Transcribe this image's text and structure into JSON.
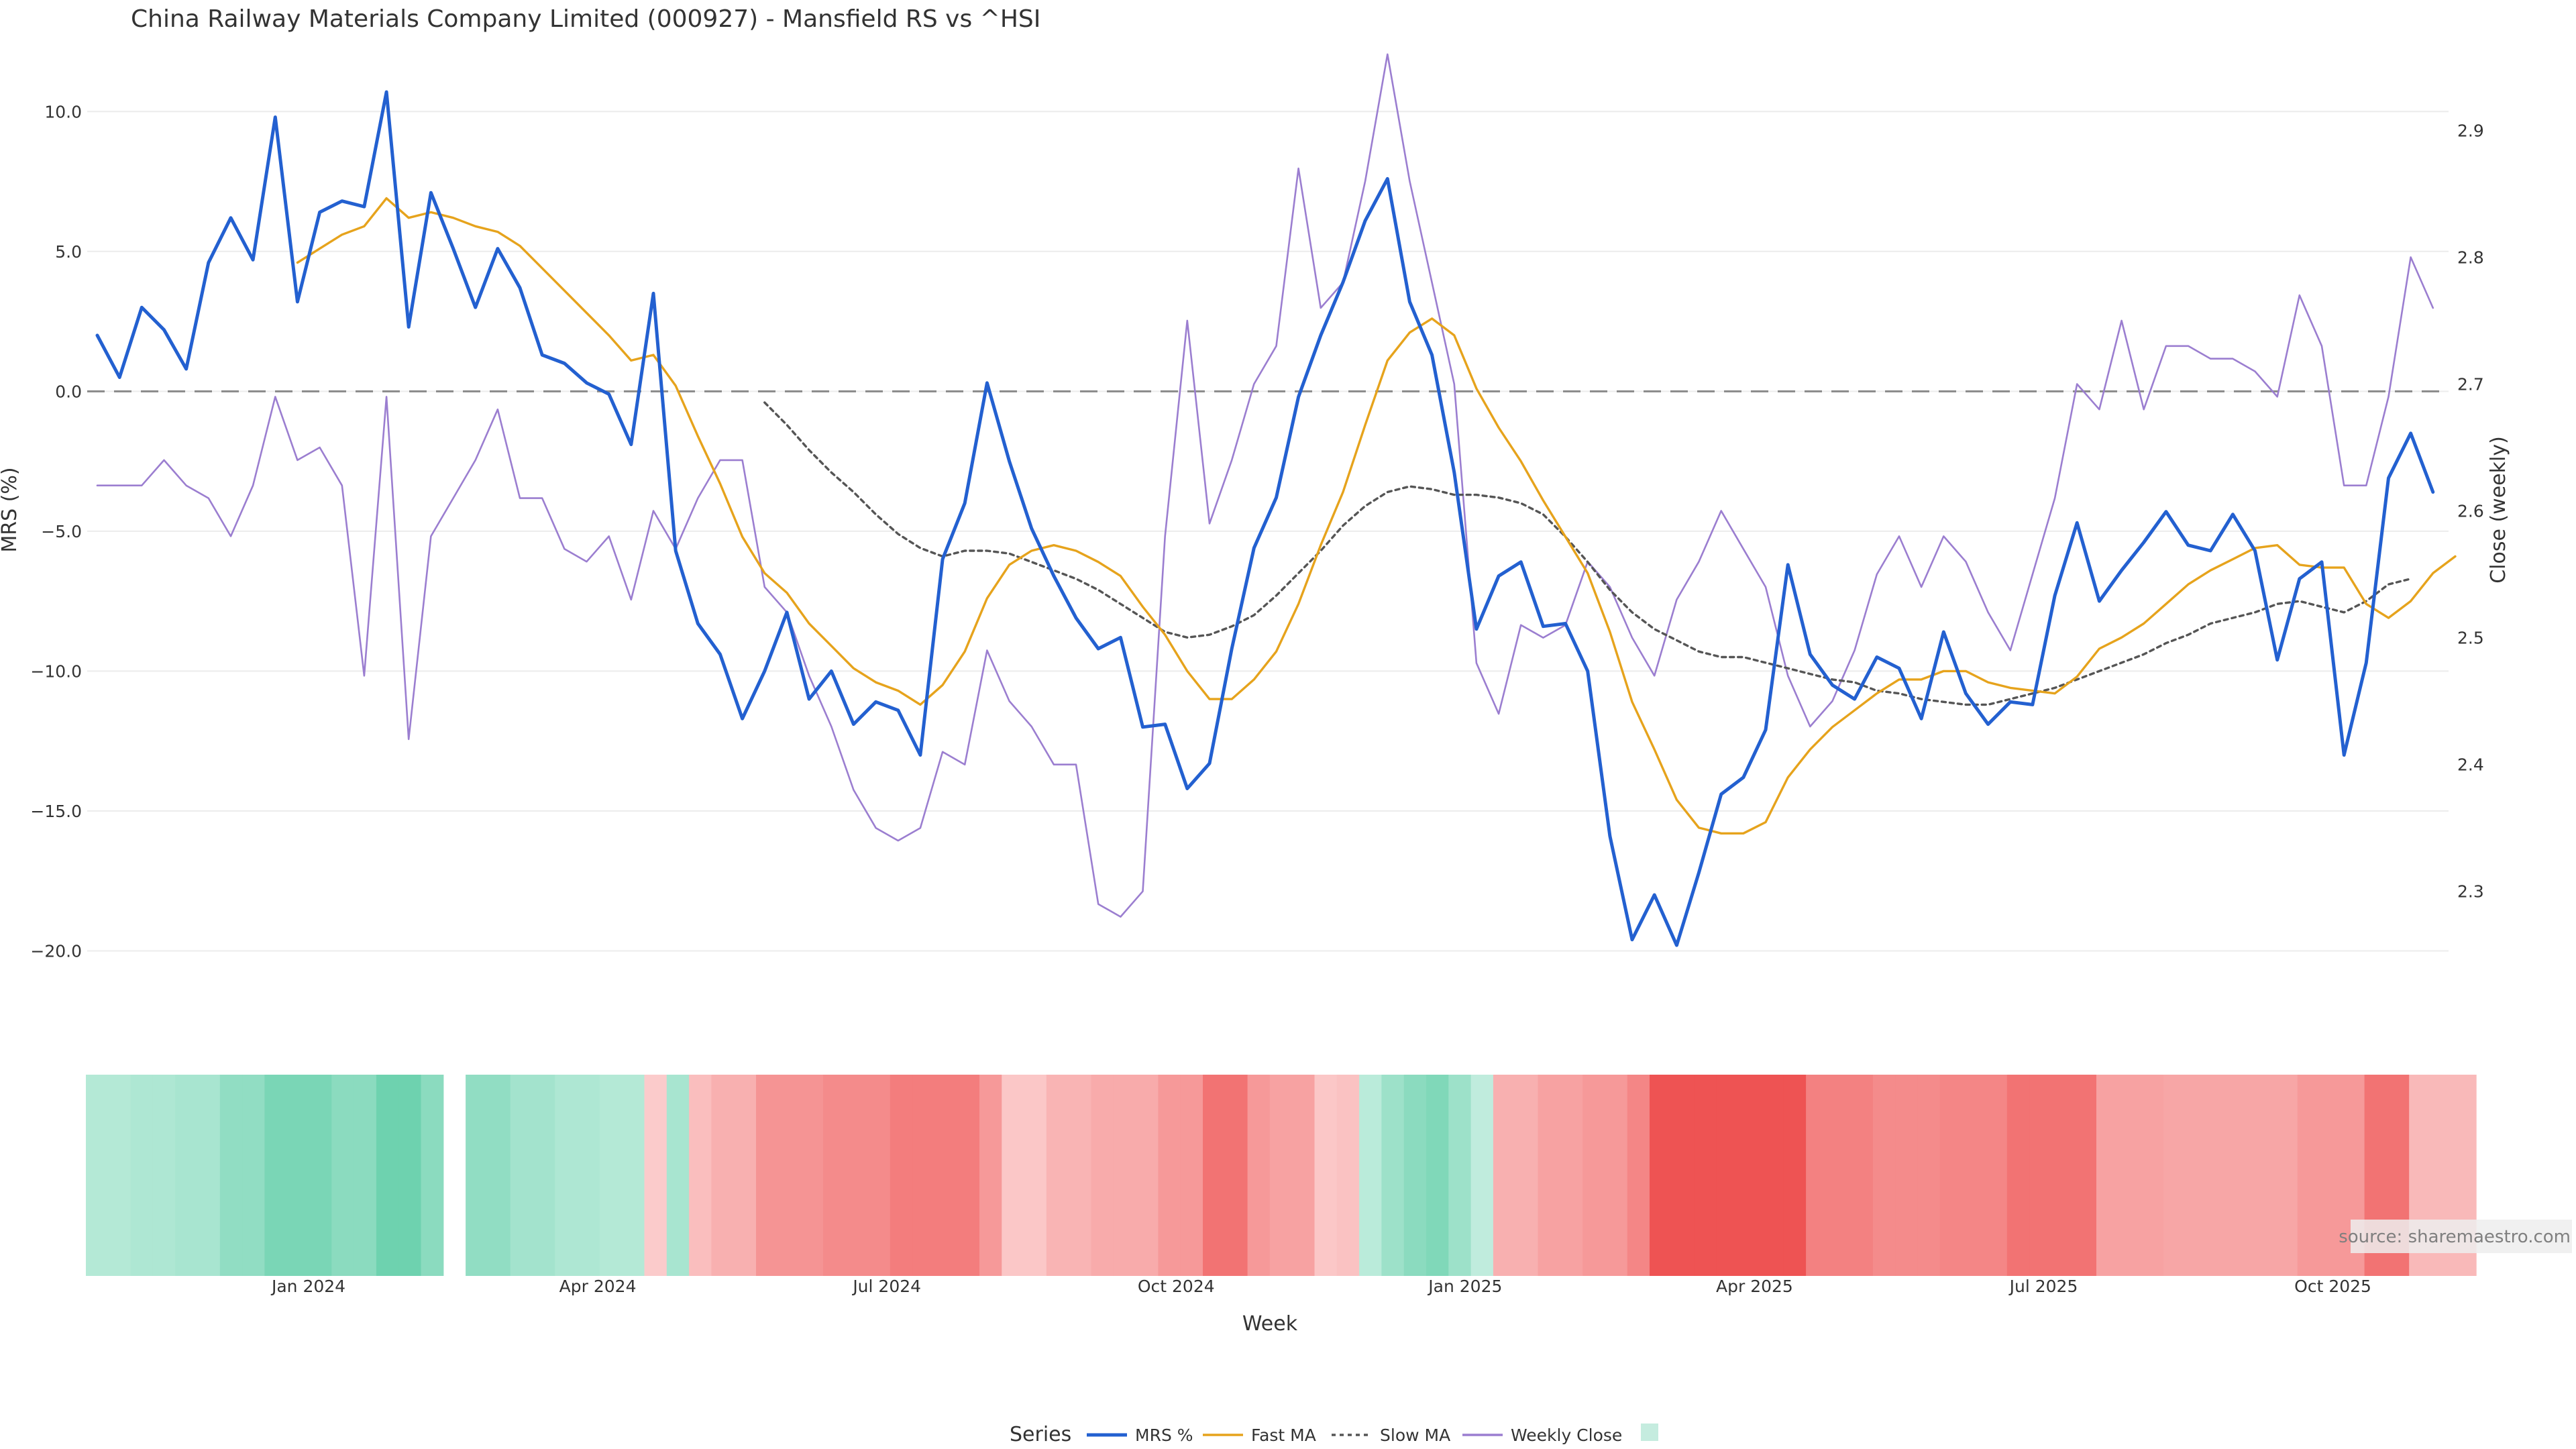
{
  "chart_data": {
    "type": "line",
    "title": "China Railway Materials Company Limited (000927) - Mansfield RS vs ^HSI",
    "xlabel": "Week",
    "ylabel_left": "MRS (%)",
    "ylabel_right": "Close (weekly)",
    "ylim_left": [
      -21.5,
      12.5
    ],
    "ylim_right": [
      2.22,
      2.97
    ],
    "yticks_left": [
      10.0,
      5.0,
      0.0,
      -5.0,
      -10.0,
      -15.0,
      -20.0
    ],
    "yticks_left_labels": [
      "10.0",
      "5.0",
      "0.0",
      "−5.0",
      "−10.0",
      "−15.0",
      "−20.0"
    ],
    "yticks_right": [
      2.9,
      2.8,
      2.7,
      2.6,
      2.5,
      2.4,
      2.3
    ],
    "yticks_right_labels": [
      "2.9",
      "2.8",
      "2.7",
      "2.6",
      "2.5",
      "2.4",
      "2.3"
    ],
    "x_ticks": [
      {
        "label": "Jan 2024",
        "index": 9.5
      },
      {
        "label": "Apr 2024",
        "index": 22.5
      },
      {
        "label": "Jul 2024",
        "index": 35.5
      },
      {
        "label": "Oct 2024",
        "index": 48.5
      },
      {
        "label": "Jan 2025",
        "index": 61.5
      },
      {
        "label": "Apr 2025",
        "index": 74.5
      },
      {
        "label": "Jul 2025",
        "index": 87.5
      },
      {
        "label": "Oct 2025",
        "index": 100.5
      }
    ],
    "zero_line": 0,
    "grid": true,
    "legend_placement": "bottom-center",
    "legend_title": "Series",
    "series": [
      {
        "name": "MRS %",
        "color": "#2360d0",
        "axis": "left",
        "values": [
          2.0,
          0.5,
          3.0,
          2.2,
          0.8,
          4.6,
          6.2,
          4.7,
          9.8,
          3.2,
          6.4,
          6.8,
          6.6,
          10.7,
          2.3,
          7.1,
          5.1,
          3.0,
          5.1,
          3.7,
          1.3,
          1.0,
          0.3,
          -0.1,
          -1.9,
          3.5,
          -5.7,
          -8.3,
          -9.4,
          -11.7,
          -10.0,
          -7.9,
          -11.0,
          -10.0,
          -11.9,
          -11.1,
          -11.4,
          -13.0,
          -6.0,
          -4.0,
          0.3,
          -2.5,
          -4.9,
          -6.6,
          -8.1,
          -9.2,
          -8.8,
          -12.0,
          -11.9,
          -14.2,
          -13.3,
          -9.2,
          -5.6,
          -3.8,
          -0.2,
          2.0,
          3.9,
          6.1,
          7.6,
          3.2,
          1.3,
          -2.9,
          -8.5,
          -6.6,
          -6.1,
          -8.4,
          -8.3,
          -10.0,
          -15.9,
          -19.6,
          -18.0,
          -19.8,
          -17.2,
          -14.4,
          -13.8,
          -12.1,
          -6.2,
          -9.4,
          -10.5,
          -11.0,
          -9.5,
          -9.9,
          -11.7,
          -8.6,
          -10.8,
          -11.9,
          -11.1,
          -11.2,
          -7.3,
          -4.7,
          -7.5,
          -6.4,
          -5.4,
          -4.3,
          -5.5,
          -5.7,
          -4.4,
          -5.7,
          -9.6,
          -6.7,
          -6.1,
          -13.0,
          -9.7,
          -3.1,
          -1.5,
          -3.6
        ]
      },
      {
        "name": "Fast MA",
        "color": "#e6a31c",
        "axis": "left",
        "startIndex": 9,
        "values": [
          4.6,
          5.1,
          5.6,
          5.9,
          6.9,
          6.2,
          6.4,
          6.2,
          5.9,
          5.7,
          5.2,
          4.4,
          3.6,
          2.8,
          2.0,
          1.1,
          1.3,
          0.2,
          -1.6,
          -3.3,
          -5.2,
          -6.5,
          -7.2,
          -8.3,
          -9.1,
          -9.9,
          -10.4,
          -10.7,
          -11.2,
          -10.5,
          -9.3,
          -7.4,
          -6.2,
          -5.7,
          -5.5,
          -5.7,
          -6.1,
          -6.6,
          -7.7,
          -8.7,
          -10.0,
          -11.0,
          -11.0,
          -10.3,
          -9.3,
          -7.6,
          -5.5,
          -3.6,
          -1.2,
          1.1,
          2.1,
          2.6,
          2.0,
          0.1,
          -1.3,
          -2.5,
          -3.9,
          -5.2,
          -6.5,
          -8.6,
          -11.1,
          -12.8,
          -14.6,
          -15.6,
          -15.8,
          -15.8,
          -15.4,
          -13.8,
          -12.8,
          -12.0,
          -11.4,
          -10.8,
          -10.3,
          -10.3,
          -10.0,
          -10.0,
          -10.4,
          -10.6,
          -10.7,
          -10.8,
          -10.2,
          -9.2,
          -8.8,
          -8.3,
          -7.6,
          -6.9,
          -6.4,
          -6.0,
          -5.6,
          -5.5,
          -6.2,
          -6.3,
          -6.3,
          -7.6,
          -8.1,
          -7.5,
          -6.5,
          -5.9
        ]
      },
      {
        "name": "Slow MA",
        "color": "#555555",
        "axis": "left",
        "dash": true,
        "startIndex": 30,
        "values": [
          -0.4,
          -1.2,
          -2.1,
          -2.9,
          -3.6,
          -4.4,
          -5.1,
          -5.6,
          -5.9,
          -5.7,
          -5.7,
          -5.8,
          -6.1,
          -6.4,
          -6.7,
          -7.1,
          -7.6,
          -8.1,
          -8.6,
          -8.8,
          -8.7,
          -8.4,
          -8.0,
          -7.3,
          -6.5,
          -5.7,
          -4.8,
          -4.1,
          -3.6,
          -3.4,
          -3.5,
          -3.7,
          -3.7,
          -3.8,
          -4.0,
          -4.4,
          -5.2,
          -6.1,
          -7.1,
          -7.9,
          -8.5,
          -8.9,
          -9.3,
          -9.5,
          -9.5,
          -9.7,
          -9.9,
          -10.1,
          -10.3,
          -10.4,
          -10.7,
          -10.8,
          -11.0,
          -11.1,
          -11.2,
          -11.2,
          -11.0,
          -10.8,
          -10.6,
          -10.3,
          -10.0,
          -9.7,
          -9.4,
          -9.0,
          -8.7,
          -8.3,
          -8.1,
          -7.9,
          -7.6,
          -7.5,
          -7.7,
          -7.9,
          -7.5,
          -6.9,
          -6.7
        ]
      },
      {
        "name": "Weekly Close",
        "color": "#9b7ed0",
        "axis": "right",
        "values": [
          2.62,
          2.62,
          2.62,
          2.64,
          2.62,
          2.61,
          2.58,
          2.62,
          2.69,
          2.64,
          2.65,
          2.62,
          2.47,
          2.69,
          2.42,
          2.58,
          2.61,
          2.64,
          2.68,
          2.61,
          2.61,
          2.57,
          2.56,
          2.58,
          2.53,
          2.6,
          2.57,
          2.61,
          2.64,
          2.64,
          2.54,
          2.52,
          2.47,
          2.43,
          2.38,
          2.35,
          2.34,
          2.35,
          2.41,
          2.4,
          2.49,
          2.45,
          2.43,
          2.4,
          2.4,
          2.29,
          2.28,
          2.3,
          2.58,
          2.75,
          2.59,
          2.64,
          2.7,
          2.73,
          2.87,
          2.76,
          2.78,
          2.86,
          2.96,
          2.86,
          2.78,
          2.7,
          2.48,
          2.44,
          2.51,
          2.5,
          2.51,
          2.56,
          2.54,
          2.5,
          2.47,
          2.53,
          2.56,
          2.6,
          2.57,
          2.54,
          2.47,
          2.43,
          2.45,
          2.49,
          2.55,
          2.58,
          2.54,
          2.58,
          2.56,
          2.52,
          2.49,
          2.55,
          2.61,
          2.7,
          2.68,
          2.75,
          2.68,
          2.73,
          2.73,
          2.72,
          2.72,
          2.71,
          2.69,
          2.77,
          2.73,
          2.62,
          2.62,
          2.69,
          2.8,
          2.76
        ]
      },
      {
        "name": "",
        "color": "#c5ecdf",
        "axis": "none",
        "legendSwatch": true
      }
    ],
    "heatmap": {
      "gap_after_index": 15,
      "values": [
        1.2,
        1.2,
        1.4,
        1.4,
        1.6,
        1.6,
        2.4,
        2.4,
        3.2,
        3.2,
        3.2,
        2.6,
        2.6,
        3.6,
        3.6,
        2.6,
        2.4,
        2.4,
        1.8,
        1.8,
        1.4,
        1.4,
        1.2,
        1.2,
        -0.8,
        1.6,
        -1.4,
        -2.0,
        -2.0,
        -3.2,
        -3.2,
        -3.2,
        -3.6,
        -3.6,
        -3.6,
        -4.2,
        -4.2,
        -4.2,
        -4.2,
        -3.0,
        -1.0,
        -1.0,
        -1.8,
        -1.8,
        -2.2,
        -2.2,
        -2.2,
        -3.0,
        -3.0,
        -4.6,
        -4.6,
        -3.0,
        -2.6,
        -2.6,
        -1.0,
        -1.2,
        1.0,
        2.0,
        2.6,
        3.0,
        2.0,
        0.8,
        -2.0,
        -2.0,
        -2.6,
        -2.6,
        -3.0,
        -3.0,
        -3.8,
        -6.0,
        -6.0,
        -6.0,
        -6.0,
        -6.0,
        -6.0,
        -6.0,
        -4.0,
        -4.0,
        -4.0,
        -3.6,
        -3.6,
        -3.6,
        -3.8,
        -3.8,
        -3.8,
        -4.6,
        -4.6,
        -4.6,
        -4.6,
        -2.6,
        -2.6,
        -2.6,
        -2.4,
        -2.4,
        -2.4,
        -2.4,
        -2.4,
        -2.4,
        -3.0,
        -3.0,
        -3.0,
        -4.6,
        -4.6,
        -1.6,
        -1.6,
        -1.6
      ]
    },
    "source": "source: sharemaestro.com"
  }
}
